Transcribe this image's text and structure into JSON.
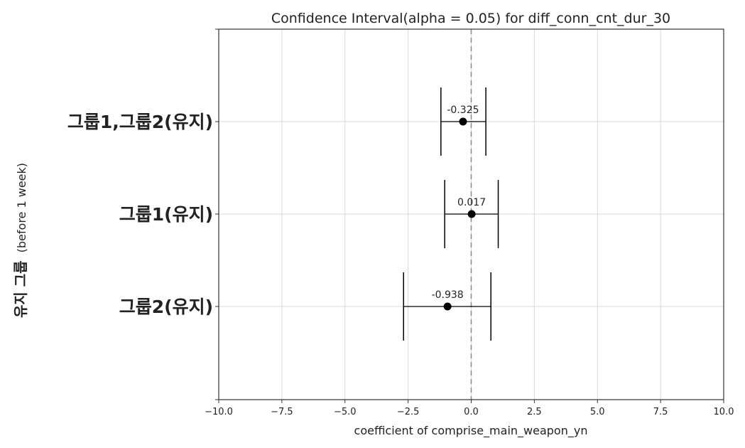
{
  "chart_data": {
    "type": "errorbar",
    "title": "Confidence Interval(alpha = 0.05) for diff_conn_cnt_dur_30",
    "xlabel": "coefficient of comprise_main_weapon_yn",
    "ylabel": {
      "main": "유지 그룹",
      "sub": "(before 1 week)"
    },
    "xlim": [
      -10.0,
      10.0
    ],
    "x_ticks": [
      -10.0,
      -7.5,
      -5.0,
      -2.5,
      0.0,
      2.5,
      5.0,
      7.5,
      10.0
    ],
    "x_tick_labels": [
      "−10.0",
      "−7.5",
      "−5.0",
      "−2.5",
      "0.0",
      "2.5",
      "5.0",
      "7.5",
      "10.0"
    ],
    "grid": true,
    "reference_line_x": 0,
    "categories": [
      "그룹1,그룹2(유지)",
      "그룹1(유지)",
      "그룹2(유지)"
    ],
    "estimates": [
      -0.325,
      0.017,
      -0.938
    ],
    "lower": [
      -1.2,
      -1.05,
      -2.68
    ],
    "upper": [
      0.58,
      1.07,
      0.78
    ],
    "data_labels": [
      "-0.325",
      "0.017",
      "-0.938"
    ],
    "colors": {
      "marker": "#000000",
      "errorbar": "#000000",
      "grid": "#d9d9d9",
      "reference": "#888888",
      "axis": "#333333"
    }
  }
}
